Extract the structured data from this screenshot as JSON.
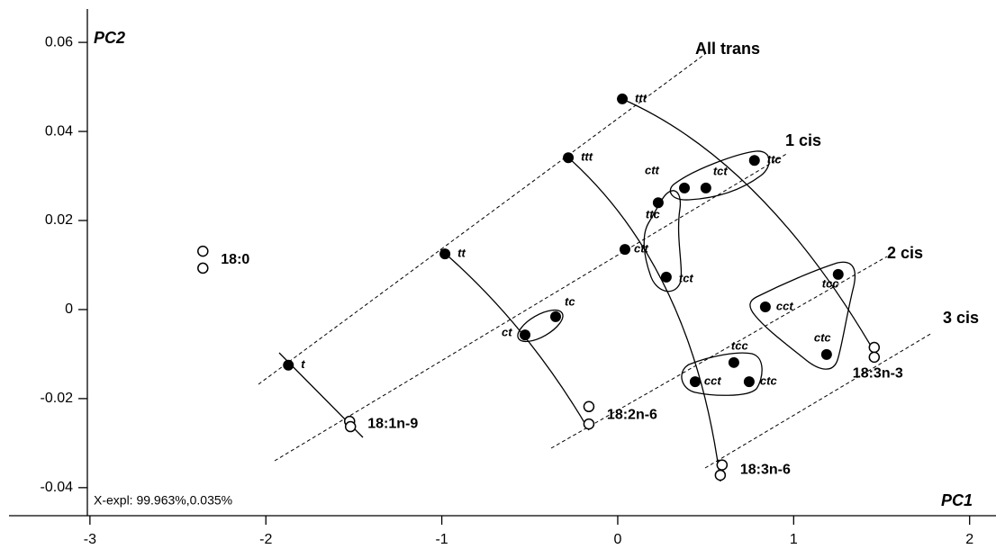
{
  "chart_data": {
    "type": "scatter",
    "xlabel": "PC1",
    "ylabel": "PC2",
    "xlim": [
      -3.46,
      2.15
    ],
    "ylim": [
      -0.0463,
      0.0675
    ],
    "xticks": [
      -3,
      -2,
      -1,
      0,
      1,
      2
    ],
    "yticks": [
      {
        "value": -0.04,
        "label": "-0.04"
      },
      {
        "value": -0.02,
        "label": "-0.02"
      },
      0,
      {
        "value": 0.02,
        "label": "0.02"
      },
      {
        "value": 0.04,
        "label": "0.04"
      },
      {
        "value": 0.06,
        "label": "0.06"
      }
    ],
    "annotations": [
      "All trans",
      "1 cis",
      "2 cis",
      "3 cis",
      "X-expl: 99.963%,0.035%"
    ],
    "isomers": [
      {
        "label": "t",
        "x": -1.872,
        "y": -0.0125
      },
      {
        "label": "tt",
        "x": -0.982,
        "y": 0.0125
      },
      {
        "label": "ct",
        "x": -0.527,
        "y": -0.0057
      },
      {
        "label": "tc",
        "x": -0.353,
        "y": -0.0016
      },
      {
        "label": "ttt",
        "x": -0.281,
        "y": 0.0341
      },
      {
        "label": "ttc",
        "x": 0.23,
        "y": 0.024
      },
      {
        "label": "ctt",
        "x": 0.041,
        "y": 0.0135
      },
      {
        "label": "tct",
        "x": 0.276,
        "y": 0.0073
      },
      {
        "label": "ttt",
        "x": 0.026,
        "y": 0.0473
      },
      {
        "label": "ctt",
        "x": 0.379,
        "y": 0.0273
      },
      {
        "label": "tct",
        "x": 0.501,
        "y": 0.0273
      },
      {
        "label": "ttc",
        "x": 0.777,
        "y": 0.0335
      },
      {
        "label": "tcc",
        "x": 1.253,
        "y": 0.0079
      },
      {
        "label": "cct",
        "x": 0.839,
        "y": 0.0006
      },
      {
        "label": "ctc",
        "x": 1.187,
        "y": -0.0101
      },
      {
        "label": "tcc",
        "x": 0.66,
        "y": -0.0119
      },
      {
        "label": "cct",
        "x": 0.44,
        "y": -0.0162
      },
      {
        "label": "ctc",
        "x": 0.747,
        "y": -0.0162
      }
    ],
    "parents": [
      {
        "label": "18:0",
        "x": [
          -2.358,
          -2.358
        ],
        "y": [
          0.0131,
          0.0093
        ]
      },
      {
        "label": "18:1n-9",
        "x": [
          -1.524,
          -1.519
        ],
        "y": [
          -0.0251,
          -0.0263
        ]
      },
      {
        "label": "18:2n-6",
        "x": [
          -0.164,
          -0.164
        ],
        "y": [
          -0.0218,
          -0.0257
        ]
      },
      {
        "label": "18:3n-6",
        "x": [
          0.593,
          0.583
        ],
        "y": [
          -0.0349,
          -0.0372
        ]
      },
      {
        "label": "18:3n-3",
        "x": [
          1.458,
          1.458
        ],
        "y": [
          -0.0085,
          -0.0107
        ]
      }
    ]
  }
}
